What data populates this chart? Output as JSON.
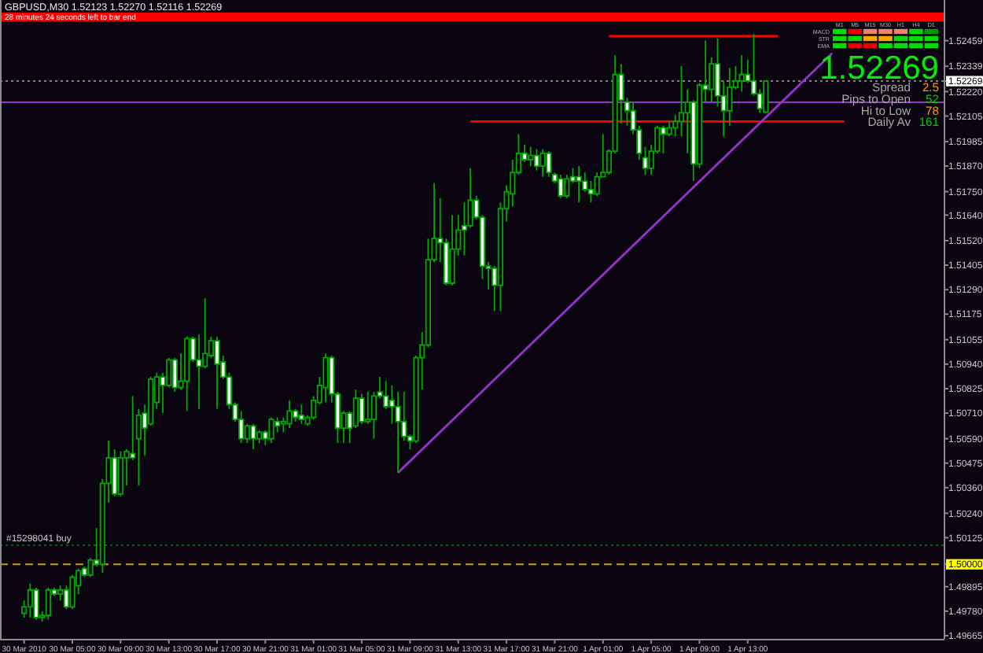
{
  "chart_data": [
    {
      "type": "candlestick",
      "title": "GBPUSD,M30 1.52123 1.52270 1.52116 1.52269",
      "annotations": [
        "28 minutes 24 seconds left to bar end"
      ],
      "color": "#00a800",
      "xlim": [
        "2010-03-29T23:00",
        "2010-04-02T05:15"
      ],
      "xticks": [
        {
          "value": "2010-03-30T01:00",
          "label": "30 Mar 2010"
        },
        {
          "value": "2010-03-30T05:00",
          "label": "30 Mar 05:00"
        },
        {
          "value": "2010-03-30T09:00",
          "label": "30 Mar 09:00"
        },
        {
          "value": "2010-03-30T13:00",
          "label": "30 Mar 13:00"
        },
        {
          "value": "2010-03-30T17:00",
          "label": "30 Mar 17:00"
        },
        {
          "value": "2010-03-30T21:00",
          "label": "30 Mar 21:00"
        },
        {
          "value": "2010-03-31T01:00",
          "label": "31 Mar 01:00"
        },
        {
          "value": "2010-03-31T05:00",
          "label": "31 Mar 05:00"
        },
        {
          "value": "2010-03-31T09:00",
          "label": "31 Mar 09:00"
        },
        {
          "value": "2010-03-31T13:00",
          "label": "31 Mar 13:00"
        },
        {
          "value": "2010-03-31T17:00",
          "label": "31 Mar 17:00"
        },
        {
          "value": "2010-03-31T21:00",
          "label": "31 Mar 21:00"
        },
        {
          "value": "2010-04-01T01:00",
          "label": "1 Apr 01:00"
        },
        {
          "value": "2010-04-01T05:00",
          "label": "1 Apr 05:00"
        },
        {
          "value": "2010-04-01T09:00",
          "label": "1 Apr 09:00"
        },
        {
          "value": "2010-04-01T13:00",
          "label": "1 Apr 13:00"
        }
      ],
      "ylim": [
        1.4965,
        1.5265
      ],
      "yticks": [
        1.52459,
        1.52339,
        1.52269,
        {
          "value": 1.5222,
          "label": "1.52220"
        },
        1.52105,
        1.51985,
        {
          "value": 1.5187,
          "label": "1.51870"
        },
        {
          "value": 1.5175,
          "label": "1.51750"
        },
        {
          "value": 1.5164,
          "label": "1.51640"
        },
        {
          "value": 1.5152,
          "label": "1.51520"
        },
        1.51405,
        {
          "value": 1.5129,
          "label": "1.51290"
        },
        1.51175,
        1.51055,
        {
          "value": 1.5094,
          "label": "1.50940"
        },
        1.50825,
        {
          "value": 1.5071,
          "label": "1.50710"
        },
        {
          "value": 1.5059,
          "label": "1.50590"
        },
        1.50475,
        {
          "value": 1.5036,
          "label": "1.50360"
        },
        {
          "value": 1.5024,
          "label": "1.50240"
        },
        1.50125,
        {
          "value": 1.5,
          "label": "1.50000"
        },
        1.49895,
        {
          "value": 1.4978,
          "label": "1.49780"
        },
        1.49665
      ],
      "ref_lines": [
        {
          "axis": "y",
          "value": 1.52269,
          "color": "#808080",
          "line_style": "dotted"
        },
        {
          "axis": "y",
          "value": 1.5217,
          "color": "#9932cc"
        },
        {
          "axis": "y",
          "value": 1.5009,
          "label": "#15298041 buy",
          "color": "#006400",
          "line_style": "dotted"
        },
        {
          "axis": "y",
          "value": 1.5,
          "color": "#c8a000",
          "line_style": "dashed"
        }
      ],
      "series": [
        {
          "type": "line",
          "color": "#ff0000",
          "x": [
            "2010-04-01T01:30",
            "2010-04-01T15:30"
          ],
          "values": [
            1.5248,
            1.5248
          ]
        },
        {
          "type": "line",
          "color": "#ff0000",
          "x": [
            "2010-03-31T14:00",
            "2010-04-01T21:00"
          ],
          "values": [
            1.5208,
            1.5208
          ]
        },
        {
          "type": "line",
          "color": "#9932cc",
          "x": [
            "2010-03-31T08:00",
            "2010-04-01T20:00"
          ],
          "values": [
            1.5043,
            1.524
          ]
        }
      ],
      "x": [
        "2010-03-30T01:00",
        "2010-03-30T01:30",
        "2010-03-30T02:00",
        "2010-03-30T02:30",
        "2010-03-30T03:00",
        "2010-03-30T03:30",
        "2010-03-30T04:00",
        "2010-03-30T04:30",
        "2010-03-30T05:00",
        "2010-03-30T05:30",
        "2010-03-30T06:00",
        "2010-03-30T06:30",
        "2010-03-30T07:00",
        "2010-03-30T07:30",
        "2010-03-30T08:00",
        "2010-03-30T08:30",
        "2010-03-30T09:00",
        "2010-03-30T09:30",
        "2010-03-30T10:00",
        "2010-03-30T10:30",
        "2010-03-30T11:00",
        "2010-03-30T11:30",
        "2010-03-30T12:00",
        "2010-03-30T12:30",
        "2010-03-30T13:00",
        "2010-03-30T13:30",
        "2010-03-30T14:00",
        "2010-03-30T14:30",
        "2010-03-30T15:00",
        "2010-03-30T15:30",
        "2010-03-30T16:00",
        "2010-03-30T16:30",
        "2010-03-30T17:00",
        "2010-03-30T17:30",
        "2010-03-30T18:00",
        "2010-03-30T18:30",
        "2010-03-30T19:00",
        "2010-03-30T19:30",
        "2010-03-30T20:00",
        "2010-03-30T20:30",
        "2010-03-30T21:00",
        "2010-03-30T21:30",
        "2010-03-30T22:00",
        "2010-03-30T22:30",
        "2010-03-30T23:00",
        "2010-03-30T23:30",
        "2010-03-31T00:00",
        "2010-03-31T00:30",
        "2010-03-31T01:00",
        "2010-03-31T01:30",
        "2010-03-31T02:00",
        "2010-03-31T02:30",
        "2010-03-31T03:00",
        "2010-03-31T03:30",
        "2010-03-31T04:00",
        "2010-03-31T04:30",
        "2010-03-31T05:00",
        "2010-03-31T05:30",
        "2010-03-31T06:00",
        "2010-03-31T06:30",
        "2010-03-31T07:00",
        "2010-03-31T07:30",
        "2010-03-31T08:00",
        "2010-03-31T08:30",
        "2010-03-31T09:00",
        "2010-03-31T09:30",
        "2010-03-31T10:00",
        "2010-03-31T10:30",
        "2010-03-31T11:00",
        "2010-03-31T11:30",
        "2010-03-31T12:00",
        "2010-03-31T12:30",
        "2010-03-31T13:00",
        "2010-03-31T13:30",
        "2010-03-31T14:00",
        "2010-03-31T14:30",
        "2010-03-31T15:00",
        "2010-03-31T15:30",
        "2010-03-31T16:00",
        "2010-03-31T16:30",
        "2010-03-31T17:00",
        "2010-03-31T17:30",
        "2010-03-31T18:00",
        "2010-03-31T18:30",
        "2010-03-31T19:00",
        "2010-03-31T19:30",
        "2010-03-31T20:00",
        "2010-03-31T20:30",
        "2010-03-31T21:00",
        "2010-03-31T21:30",
        "2010-03-31T22:00",
        "2010-03-31T22:30",
        "2010-03-31T23:00",
        "2010-03-31T23:30",
        "2010-04-01T00:00",
        "2010-04-01T00:30",
        "2010-04-01T01:00",
        "2010-04-01T01:30",
        "2010-04-01T02:00",
        "2010-04-01T02:30",
        "2010-04-01T03:00",
        "2010-04-01T03:30",
        "2010-04-01T04:00",
        "2010-04-01T04:30",
        "2010-04-01T05:00",
        "2010-04-01T05:30",
        "2010-04-01T06:00",
        "2010-04-01T06:30",
        "2010-04-01T07:00",
        "2010-04-01T07:30",
        "2010-04-01T08:00",
        "2010-04-01T08:30",
        "2010-04-01T09:00",
        "2010-04-01T09:30",
        "2010-04-01T10:00",
        "2010-04-01T10:30",
        "2010-04-01T11:00",
        "2010-04-01T11:30",
        "2010-04-01T12:00",
        "2010-04-01T12:30",
        "2010-04-01T13:00",
        "2010-04-01T13:30",
        "2010-04-01T14:00",
        "2010-04-01T14:30"
      ],
      "ohlc": [
        [
          1.4977,
          1.4983,
          1.4975,
          1.498
        ],
        [
          1.498,
          1.4991,
          1.4975,
          1.4988
        ],
        [
          1.4988,
          1.4989,
          1.4974,
          1.4975
        ],
        [
          1.4975,
          1.4978,
          1.4973,
          1.4976
        ],
        [
          1.4976,
          1.4989,
          1.4974,
          1.4988
        ],
        [
          1.4988,
          1.4989,
          1.4985,
          1.4986
        ],
        [
          1.4986,
          1.499,
          1.4983,
          1.4988
        ],
        [
          1.4988,
          1.499,
          1.4979,
          1.498
        ],
        [
          1.498,
          1.4995,
          1.4979,
          1.4994
        ],
        [
          1.499,
          1.4998,
          1.4986,
          1.4997
        ],
        [
          1.4998,
          1.4999,
          1.4994,
          1.4995
        ],
        [
          1.4995,
          1.5003,
          1.4994,
          1.5002
        ],
        [
          1.5002,
          1.5017,
          1.4999,
          1.5
        ],
        [
          1.5,
          1.504,
          1.4996,
          1.5038
        ],
        [
          1.5038,
          1.5058,
          1.5029,
          1.505
        ],
        [
          1.505,
          1.5054,
          1.5032,
          1.5033
        ],
        [
          1.5033,
          1.5053,
          1.5032,
          1.505
        ],
        [
          1.505,
          1.5054,
          1.5037,
          1.5053
        ],
        [
          1.5052,
          1.5079,
          1.5049,
          1.505
        ],
        [
          1.5059,
          1.5073,
          1.5037,
          1.507
        ],
        [
          1.5071,
          1.5075,
          1.5051,
          1.5064
        ],
        [
          1.5066,
          1.5088,
          1.5065,
          1.5087
        ],
        [
          1.5076,
          1.509,
          1.5073,
          1.5088
        ],
        [
          1.5088,
          1.509,
          1.5071,
          1.5084
        ],
        [
          1.5084,
          1.5097,
          1.5083,
          1.5096
        ],
        [
          1.5096,
          1.5097,
          1.5081,
          1.5083
        ],
        [
          1.5083,
          1.5099,
          1.5082,
          1.5086
        ],
        [
          1.5086,
          1.5107,
          1.5072,
          1.5106
        ],
        [
          1.5106,
          1.5107,
          1.5095,
          1.5096
        ],
        [
          1.5096,
          1.5108,
          1.5073,
          1.5093
        ],
        [
          1.5093,
          1.5125,
          1.5092,
          1.5099
        ],
        [
          1.5098,
          1.5107,
          1.5097,
          1.5105
        ],
        [
          1.5105,
          1.5107,
          1.5073,
          1.5094
        ],
        [
          1.5095,
          1.5098,
          1.5087,
          1.5088
        ],
        [
          1.5088,
          1.509,
          1.5073,
          1.5075
        ],
        [
          1.5075,
          1.5076,
          1.5067,
          1.5068
        ],
        [
          1.5068,
          1.5072,
          1.5057,
          1.5059
        ],
        [
          1.5059,
          1.5066,
          1.5057,
          1.5065
        ],
        [
          1.5065,
          1.5066,
          1.5054,
          1.5059
        ],
        [
          1.5059,
          1.5063,
          1.5057,
          1.5062
        ],
        [
          1.5062,
          1.5063,
          1.5056,
          1.5059
        ],
        [
          1.5059,
          1.5069,
          1.5057,
          1.5068
        ],
        [
          1.5067,
          1.5069,
          1.5062,
          1.5065
        ],
        [
          1.5066,
          1.5069,
          1.5062,
          1.5067
        ],
        [
          1.5066,
          1.5077,
          1.5064,
          1.5072
        ],
        [
          1.5072,
          1.5073,
          1.5067,
          1.5069
        ],
        [
          1.507,
          1.5075,
          1.5066,
          1.5068
        ],
        [
          1.5066,
          1.507,
          1.5065,
          1.5069
        ],
        [
          1.5069,
          1.5079,
          1.5068,
          1.5077
        ],
        [
          1.5076,
          1.5088,
          1.5075,
          1.5084
        ],
        [
          1.5083,
          1.5099,
          1.5076,
          1.5097
        ],
        [
          1.5097,
          1.5098,
          1.5076,
          1.508
        ],
        [
          1.508,
          1.5081,
          1.5057,
          1.5064
        ],
        [
          1.5064,
          1.5072,
          1.5057,
          1.5071
        ],
        [
          1.5071,
          1.5072,
          1.5057,
          1.5064
        ],
        [
          1.5065,
          1.5082,
          1.5064,
          1.5078
        ],
        [
          1.5078,
          1.508,
          1.5066,
          1.5067
        ],
        [
          1.5067,
          1.5081,
          1.5066,
          1.5068
        ],
        [
          1.5068,
          1.5081,
          1.5059,
          1.5079
        ],
        [
          1.5081,
          1.5088,
          1.5078,
          1.5079
        ],
        [
          1.5079,
          1.5086,
          1.5073,
          1.5074
        ],
        [
          1.5077,
          1.5084,
          1.5066,
          1.5074
        ],
        [
          1.5074,
          1.5081,
          1.5043,
          1.5067
        ],
        [
          1.5067,
          1.5081,
          1.5058,
          1.506
        ],
        [
          1.506,
          1.5061,
          1.5054,
          1.5058
        ],
        [
          1.5058,
          1.5098,
          1.5057,
          1.5097
        ],
        [
          1.5097,
          1.5109,
          1.5082,
          1.5103
        ],
        [
          1.5103,
          1.5153,
          1.5102,
          1.5143
        ],
        [
          1.5143,
          1.5179,
          1.5142,
          1.5153
        ],
        [
          1.5153,
          1.5172,
          1.5142,
          1.5151
        ],
        [
          1.5151,
          1.5153,
          1.5131,
          1.5132
        ],
        [
          1.5132,
          1.5164,
          1.5131,
          1.5148
        ],
        [
          1.5148,
          1.5164,
          1.5145,
          1.5157
        ],
        [
          1.5159,
          1.517,
          1.5145,
          1.5157
        ],
        [
          1.5159,
          1.5186,
          1.5158,
          1.5171
        ],
        [
          1.5171,
          1.5173,
          1.5162,
          1.5163
        ],
        [
          1.5163,
          1.5164,
          1.5134,
          1.514
        ],
        [
          1.514,
          1.5142,
          1.5129,
          1.5139
        ],
        [
          1.5139,
          1.514,
          1.5119,
          1.5131
        ],
        [
          1.5131,
          1.517,
          1.5119,
          1.5167
        ],
        [
          1.5167,
          1.5178,
          1.5161,
          1.5175
        ],
        [
          1.5174,
          1.519,
          1.5168,
          1.5184
        ],
        [
          1.5184,
          1.5202,
          1.5183,
          1.5193
        ],
        [
          1.5193,
          1.5197,
          1.5189,
          1.519
        ],
        [
          1.519,
          1.5196,
          1.5187,
          1.5192
        ],
        [
          1.5192,
          1.5195,
          1.5185,
          1.5187
        ],
        [
          1.5187,
          1.5195,
          1.5182,
          1.5193
        ],
        [
          1.5193,
          1.5194,
          1.5182,
          1.5184
        ],
        [
          1.5183,
          1.5184,
          1.5179,
          1.518
        ],
        [
          1.5181,
          1.5183,
          1.5172,
          1.5173
        ],
        [
          1.5173,
          1.5183,
          1.5172,
          1.5181
        ],
        [
          1.5182,
          1.5186,
          1.5179,
          1.518
        ],
        [
          1.5182,
          1.5187,
          1.517,
          1.518
        ],
        [
          1.518,
          1.5184,
          1.5175,
          1.5176
        ],
        [
          1.5176,
          1.518,
          1.517,
          1.5174
        ],
        [
          1.5174,
          1.5184,
          1.5173,
          1.5182
        ],
        [
          1.5182,
          1.5202,
          1.5182,
          1.5184
        ],
        [
          1.5184,
          1.5195,
          1.5183,
          1.5194
        ],
        [
          1.5194,
          1.5239,
          1.5193,
          1.523
        ],
        [
          1.523,
          1.5235,
          1.5207,
          1.5218
        ],
        [
          1.5217,
          1.5219,
          1.5206,
          1.5213
        ],
        [
          1.5213,
          1.5217,
          1.5202,
          1.5204
        ],
        [
          1.5204,
          1.5206,
          1.519,
          1.5193
        ],
        [
          1.5191,
          1.5196,
          1.5183,
          1.5186
        ],
        [
          1.5186,
          1.5197,
          1.5183,
          1.5194
        ],
        [
          1.5194,
          1.5206,
          1.5193,
          1.5205
        ],
        [
          1.5205,
          1.5206,
          1.5193,
          1.5202
        ],
        [
          1.5202,
          1.5208,
          1.5201,
          1.5205
        ],
        [
          1.5205,
          1.5211,
          1.5201,
          1.5208
        ],
        [
          1.5208,
          1.5234,
          1.5201,
          1.5212
        ],
        [
          1.5212,
          1.5223,
          1.5193,
          1.5217
        ],
        [
          1.5217,
          1.5218,
          1.518,
          1.5188
        ],
        [
          1.5188,
          1.5226,
          1.5186,
          1.5225
        ],
        [
          1.5225,
          1.5246,
          1.5217,
          1.5223
        ],
        [
          1.5223,
          1.5238,
          1.5217,
          1.5235
        ],
        [
          1.5235,
          1.5247,
          1.5215,
          1.522
        ],
        [
          1.522,
          1.5227,
          1.5201,
          1.5213
        ],
        [
          1.5213,
          1.5233,
          1.5206,
          1.5224
        ],
        [
          1.5224,
          1.5234,
          1.5223,
          1.5227
        ],
        [
          1.5227,
          1.5239,
          1.5222,
          1.523
        ],
        [
          1.523,
          1.5237,
          1.5226,
          1.5227
        ],
        [
          1.5227,
          1.5249,
          1.522,
          1.5221
        ],
        [
          1.5221,
          1.5223,
          1.5212,
          1.5214
        ],
        [
          1.52123,
          1.5227,
          1.52116,
          1.52269
        ]
      ]
    },
    {
      "type": "other",
      "categories": [
        "M1",
        "M5",
        "M15",
        "M30",
        "H1",
        "H4",
        "D1"
      ],
      "y_categories": [
        "MACD",
        "STR",
        "EMA"
      ],
      "annotations": [
        "1.52269",
        "Spread",
        "2.5",
        "Pips to Open",
        "52",
        "Hi to Low",
        "78",
        "Daily Av",
        "161"
      ]
    }
  ]
}
